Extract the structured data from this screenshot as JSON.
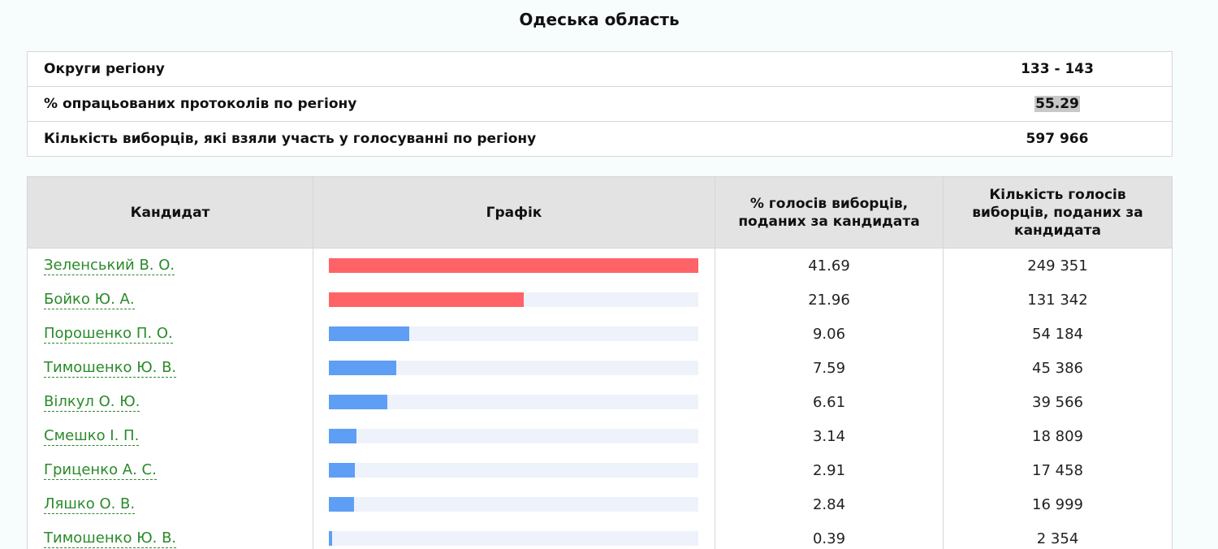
{
  "region": {
    "title": "Одеська область"
  },
  "summary": {
    "rows": [
      {
        "label": "Округи регіону",
        "value": "133 - 143"
      },
      {
        "label": "% опрацьованих протоколів по регіону",
        "value": "55.29"
      },
      {
        "label": "Кількість виборців, які взяли участь у голосуванні по регіону",
        "value": "597 966"
      }
    ]
  },
  "table": {
    "headers": {
      "candidate": "Кандидат",
      "chart": "Графік",
      "percent": "% голосів виборців, поданих за кандидата",
      "votes": "Кількість голосів виборців, поданих за кандидата"
    },
    "colors": {
      "leader": "#fe6367",
      "other": "#5e9ef5",
      "track": "#eef2fb",
      "link": "#2a8a2a"
    },
    "rows": [
      {
        "name": "Зеленський В. О.",
        "percent": "41.69",
        "votes": "249 351",
        "share": 41.69,
        "tier": "leader"
      },
      {
        "name": "Бойко Ю. А.",
        "percent": "21.96",
        "votes": "131 342",
        "share": 21.96,
        "tier": "leader"
      },
      {
        "name": "Порошенко П. О.",
        "percent": "9.06",
        "votes": "54 184",
        "share": 9.06,
        "tier": "other"
      },
      {
        "name": "Тимошенко Ю. В.",
        "percent": "7.59",
        "votes": "45 386",
        "share": 7.59,
        "tier": "other"
      },
      {
        "name": "Вілкул О. Ю.",
        "percent": "6.61",
        "votes": "39 566",
        "share": 6.61,
        "tier": "other"
      },
      {
        "name": "Смешко І. П.",
        "percent": "3.14",
        "votes": "18 809",
        "share": 3.14,
        "tier": "other"
      },
      {
        "name": "Гриценко А. С.",
        "percent": "2.91",
        "votes": "17 458",
        "share": 2.91,
        "tier": "other"
      },
      {
        "name": "Ляшко О. В.",
        "percent": "2.84",
        "votes": "16 999",
        "share": 2.84,
        "tier": "other"
      },
      {
        "name": "Тимошенко Ю. В.",
        "percent": "0.39",
        "votes": "2 354",
        "share": 0.39,
        "tier": "other"
      }
    ]
  }
}
